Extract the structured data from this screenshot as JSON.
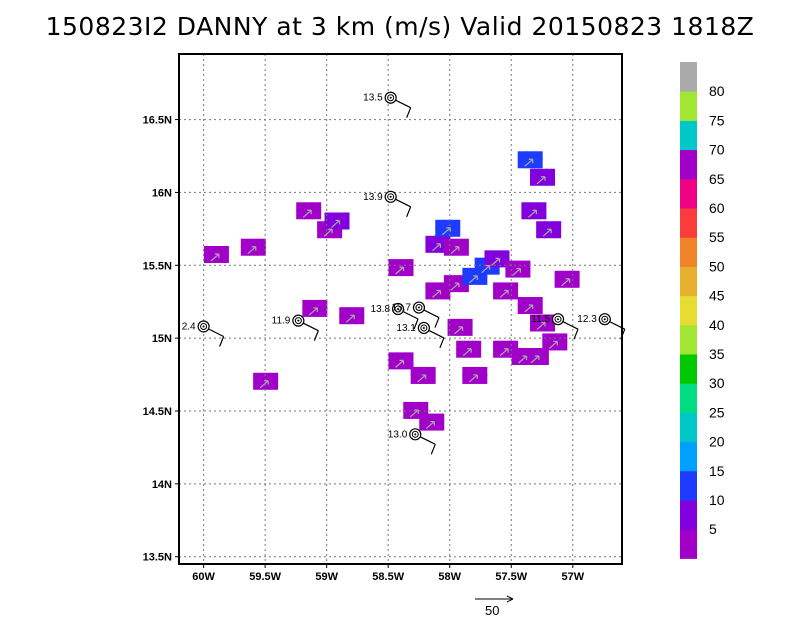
{
  "title": "150823I2 DANNY at 3 km (m/s) Valid 20150823 1818Z",
  "map": {
    "lon_range": [
      -60.2,
      -56.6
    ],
    "lat_range": [
      13.45,
      16.95
    ],
    "lon_ticks": [
      {
        "value": -60.0,
        "label": "60W"
      },
      {
        "value": -59.5,
        "label": "59.5W"
      },
      {
        "value": -59.0,
        "label": "59W"
      },
      {
        "value": -58.5,
        "label": "58.5W"
      },
      {
        "value": -58.0,
        "label": "58W"
      },
      {
        "value": -57.5,
        "label": "57.5W"
      },
      {
        "value": -57.0,
        "label": "57W"
      }
    ],
    "lat_ticks": [
      {
        "value": 13.5,
        "label": "13.5N"
      },
      {
        "value": 14.0,
        "label": "14N"
      },
      {
        "value": 14.5,
        "label": "14.5N"
      },
      {
        "value": 15.0,
        "label": "15N"
      },
      {
        "value": 15.5,
        "label": "15.5N"
      },
      {
        "value": 16.0,
        "label": "16N"
      },
      {
        "value": 16.5,
        "label": "16.5N"
      }
    ],
    "grid": true
  },
  "colorbar": {
    "colors": [
      "#a000c8",
      "#8200dc",
      "#1e3cff",
      "#00a0ff",
      "#00c8c8",
      "#00dc82",
      "#00c800",
      "#a0e632",
      "#e6dc32",
      "#e6af2d",
      "#f08228",
      "#fa3c3c",
      "#f00082",
      "#a000c8",
      "#00c8c8",
      "#a0e632",
      "#aaaaaa"
    ],
    "labels": [
      "5",
      "10",
      "15",
      "20",
      "25",
      "30",
      "35",
      "40",
      "45",
      "50",
      "55",
      "60",
      "65",
      "70",
      "75",
      "80"
    ]
  },
  "reference_vector": {
    "label": "50"
  },
  "stations": [
    {
      "label": "13.5",
      "lon": -58.48,
      "lat": 16.65
    },
    {
      "label": "13.9",
      "lon": -58.48,
      "lat": 15.97
    },
    {
      "label": "2.4",
      "lon": -60.0,
      "lat": 15.08
    },
    {
      "label": "11.9",
      "lon": -59.23,
      "lat": 15.12
    },
    {
      "label": "13.8",
      "lon": -58.42,
      "lat": 15.2
    },
    {
      "label": "13.7",
      "lon": -58.25,
      "lat": 15.21
    },
    {
      "label": "13.1",
      "lon": -58.21,
      "lat": 15.07
    },
    {
      "label": "11.5",
      "lon": -57.12,
      "lat": 15.13
    },
    {
      "label": "12.3",
      "lon": -56.74,
      "lat": 15.13
    },
    {
      "label": "13.0",
      "lon": -58.28,
      "lat": 14.34
    }
  ],
  "wind_field": [
    {
      "lon": -59.9,
      "lat": 15.55,
      "speed": 3
    },
    {
      "lon": -59.6,
      "lat": 15.6,
      "speed": 3
    },
    {
      "lon": -59.15,
      "lat": 15.85,
      "speed": 2
    },
    {
      "lon": -58.98,
      "lat": 15.72,
      "speed": 2
    },
    {
      "lon": -58.92,
      "lat": 15.78,
      "speed": 9
    },
    {
      "lon": -59.5,
      "lat": 14.68,
      "speed": 4
    },
    {
      "lon": -59.1,
      "lat": 15.18,
      "speed": 3
    },
    {
      "lon": -58.8,
      "lat": 15.13,
      "speed": 3
    },
    {
      "lon": -58.4,
      "lat": 15.46,
      "speed": 3
    },
    {
      "lon": -58.4,
      "lat": 14.82,
      "speed": 3
    },
    {
      "lon": -58.22,
      "lat": 14.72,
      "speed": 3
    },
    {
      "lon": -58.28,
      "lat": 14.48,
      "speed": 2
    },
    {
      "lon": -58.15,
      "lat": 14.4,
      "speed": 2
    },
    {
      "lon": -58.1,
      "lat": 15.3,
      "speed": 3
    },
    {
      "lon": -58.1,
      "lat": 15.62,
      "speed": 9
    },
    {
      "lon": -58.02,
      "lat": 15.73,
      "speed": 11
    },
    {
      "lon": -57.95,
      "lat": 15.6,
      "speed": 3
    },
    {
      "lon": -57.95,
      "lat": 15.35,
      "speed": 3
    },
    {
      "lon": -57.8,
      "lat": 15.4,
      "speed": 12
    },
    {
      "lon": -57.7,
      "lat": 15.47,
      "speed": 11
    },
    {
      "lon": -57.62,
      "lat": 15.52,
      "speed": 9
    },
    {
      "lon": -57.55,
      "lat": 15.3,
      "speed": 3
    },
    {
      "lon": -57.45,
      "lat": 15.45,
      "speed": 3
    },
    {
      "lon": -57.35,
      "lat": 15.2,
      "speed": 3
    },
    {
      "lon": -57.25,
      "lat": 15.08,
      "speed": 3
    },
    {
      "lon": -57.15,
      "lat": 14.95,
      "speed": 3
    },
    {
      "lon": -57.05,
      "lat": 15.38,
      "speed": 3
    },
    {
      "lon": -57.92,
      "lat": 15.05,
      "speed": 2
    },
    {
      "lon": -57.85,
      "lat": 14.9,
      "speed": 2
    },
    {
      "lon": -57.8,
      "lat": 14.72,
      "speed": 2
    },
    {
      "lon": -57.55,
      "lat": 14.9,
      "speed": 2
    },
    {
      "lon": -57.4,
      "lat": 14.85,
      "speed": 2
    },
    {
      "lon": -57.3,
      "lat": 14.85,
      "speed": 2
    },
    {
      "lon": -57.35,
      "lat": 16.2,
      "speed": 10
    },
    {
      "lon": -57.25,
      "lat": 16.08,
      "speed": 9
    },
    {
      "lon": -57.2,
      "lat": 15.72,
      "speed": 9
    },
    {
      "lon": -57.32,
      "lat": 15.85,
      "speed": 9
    }
  ]
}
